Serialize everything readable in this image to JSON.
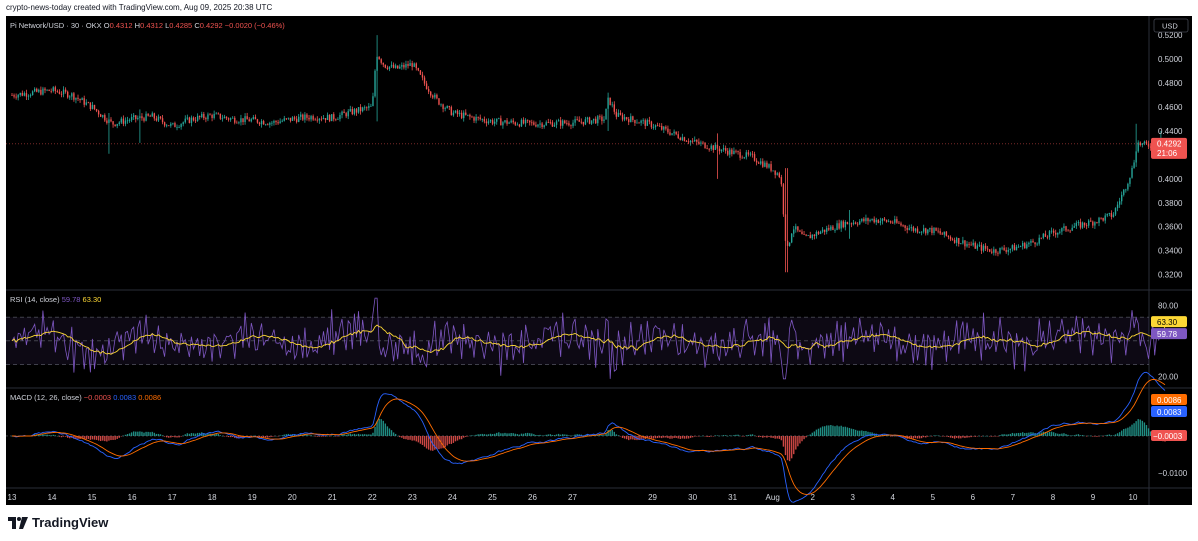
{
  "header": {
    "created_text": "crypto-news-today created with TradingView.com, Aug 09, 2025 20:38 UTC"
  },
  "footer": {
    "brand": "TradingView"
  },
  "currency_button": "USD",
  "colors": {
    "up": "#26a69a",
    "down": "#ef5350",
    "rsi": "#7e57c2",
    "rsi_ma": "#fdd835",
    "macd": "#2962ff",
    "signal": "#ff6d00",
    "bg": "#000000"
  },
  "chart_data": [
    {
      "type": "candlestick",
      "title": "Pi Network/USD · 30 · OKX",
      "legend": {
        "o_label": "O",
        "o": "0.4312",
        "h_label": "H",
        "h": "0.4312",
        "l_label": "L",
        "l": "0.4285",
        "c_label": "C",
        "c": "0.4292",
        "change": "−0.0020 (−0.46%)"
      },
      "y_ticks": [
        "0.5200",
        "0.5000",
        "0.4800",
        "0.4600",
        "0.4400",
        "0.4000",
        "0.3800",
        "0.3600",
        "0.3400",
        "0.3200"
      ],
      "ylim": [
        0.308,
        0.531
      ],
      "last_price": "0.4292",
      "countdown": "21:06",
      "x_ticks": [
        "13",
        "14",
        "15",
        "16",
        "17",
        "18",
        "19",
        "20",
        "21",
        "22",
        "23",
        "24",
        "25",
        "26",
        "27",
        "29",
        "30",
        "31",
        "Aug",
        "2",
        "3",
        "4",
        "5",
        "6",
        "7",
        "8",
        "9",
        "10"
      ],
      "x_tick_days": [
        0,
        1,
        2,
        3,
        4,
        5,
        6,
        7,
        8,
        9,
        10,
        11,
        12,
        13,
        14,
        16,
        17,
        18,
        19,
        20,
        21,
        22,
        23,
        24,
        25,
        26,
        27,
        28
      ],
      "price_path": [
        [
          0,
          0.47
        ],
        [
          0.5,
          0.472
        ],
        [
          1,
          0.474
        ],
        [
          1.5,
          0.47
        ],
        [
          2,
          0.46
        ],
        [
          2.5,
          0.446
        ],
        [
          3,
          0.45
        ],
        [
          3.5,
          0.452
        ],
        [
          4,
          0.444
        ],
        [
          4.5,
          0.45
        ],
        [
          5,
          0.453
        ],
        [
          5.5,
          0.45
        ],
        [
          6,
          0.449
        ],
        [
          6.5,
          0.447
        ],
        [
          7,
          0.45
        ],
        [
          7.5,
          0.452
        ],
        [
          8,
          0.451
        ],
        [
          8.5,
          0.456
        ],
        [
          9,
          0.46
        ],
        [
          9.1,
          0.505
        ],
        [
          9.3,
          0.495
        ],
        [
          9.6,
          0.492
        ],
        [
          10,
          0.496
        ],
        [
          10.3,
          0.48
        ],
        [
          10.6,
          0.466
        ],
        [
          11,
          0.455
        ],
        [
          11.5,
          0.451
        ],
        [
          12,
          0.448
        ],
        [
          13,
          0.446
        ],
        [
          14,
          0.447
        ],
        [
          14.8,
          0.45
        ],
        [
          14.9,
          0.467
        ],
        [
          15.1,
          0.453
        ],
        [
          16,
          0.445
        ],
        [
          17,
          0.431
        ],
        [
          18,
          0.422
        ],
        [
          18.5,
          0.418
        ],
        [
          19,
          0.408
        ],
        [
          19.2,
          0.402
        ],
        [
          19.35,
          0.338
        ],
        [
          19.5,
          0.36
        ],
        [
          19.8,
          0.35
        ],
        [
          20.2,
          0.356
        ],
        [
          20.8,
          0.363
        ],
        [
          21.5,
          0.366
        ],
        [
          22,
          0.364
        ],
        [
          22.5,
          0.358
        ],
        [
          23,
          0.357
        ],
        [
          23.5,
          0.35
        ],
        [
          24,
          0.344
        ],
        [
          24.5,
          0.34
        ],
        [
          25,
          0.342
        ],
        [
          25.5,
          0.347
        ],
        [
          26,
          0.355
        ],
        [
          26.5,
          0.36
        ],
        [
          27,
          0.364
        ],
        [
          27.5,
          0.37
        ],
        [
          27.8,
          0.392
        ],
        [
          28.0,
          0.41
        ],
        [
          28.1,
          0.43
        ],
        [
          28.3,
          0.428
        ],
        [
          28.6,
          0.429
        ],
        [
          28.8,
          0.4292
        ]
      ],
      "spikes": [
        [
          2.4,
          0.455,
          0.421
        ],
        [
          3.2,
          0.458,
          0.43
        ],
        [
          9.1,
          0.52,
          0.448
        ],
        [
          14.9,
          0.472,
          0.44
        ],
        [
          17.6,
          0.438,
          0.4
        ],
        [
          19.35,
          0.409,
          0.322
        ],
        [
          20.9,
          0.374,
          0.35
        ],
        [
          28.1,
          0.446,
          0.41
        ],
        [
          28.7,
          0.44,
          0.42
        ]
      ]
    },
    {
      "type": "line",
      "title": "RSI (14, close)",
      "legend_values": [
        "59.78",
        "63.30"
      ],
      "series": [
        {
          "name": "RSI"
        },
        {
          "name": "MA"
        }
      ],
      "y_ticks": [
        "80.00",
        "20.00"
      ],
      "bands": [
        70,
        50,
        30
      ],
      "ylim": [
        12,
        92
      ],
      "last": {
        "rsi": "59.78",
        "ma": "63.30"
      }
    },
    {
      "type": "line",
      "title": "MACD (12, 26, close)",
      "legend_values": [
        "−0.0003",
        "0.0083",
        "0.0086"
      ],
      "series": [
        {
          "name": "Histogram"
        },
        {
          "name": "MACD"
        },
        {
          "name": "Signal"
        }
      ],
      "y_ticks": [
        "−0.0100"
      ],
      "ylim": [
        -0.0138,
        0.0127
      ],
      "last": {
        "hist": "−0.0003",
        "macd": "0.0083",
        "signal": "0.0086"
      }
    }
  ]
}
